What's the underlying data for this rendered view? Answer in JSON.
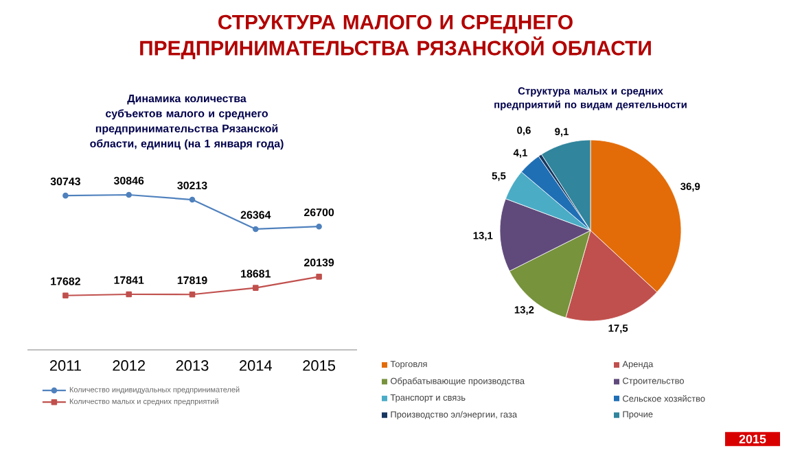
{
  "chart_data": [
    {
      "type": "line",
      "title": "СТРУКТУРА МАЛОГО И СРЕДНЕГО ПРЕДПРИНИМАТЕЛЬСТВА РЯЗАНСКОЙ ОБЛАСТИ",
      "subtitle": "Динамика количества субъектов малого и среднего предпринимательства Рязанской области, единиц (на 1 января года)",
      "categories": [
        "2011",
        "2012",
        "2013",
        "2014",
        "2015"
      ],
      "tick_labels": "x",
      "data_labels": true,
      "legend": "bottom",
      "grid": false,
      "series": [
        {
          "name": "Количество индивидуальных предпринимателей",
          "color": "#4f81bd",
          "marker": "circle",
          "values": [
            30743,
            30846,
            30213,
            26364,
            26700
          ]
        },
        {
          "name": "Количество малых и средних предприятий",
          "color": "#c0504d",
          "marker": "square",
          "values": [
            17682,
            17841,
            17819,
            18681,
            20139
          ]
        }
      ]
    },
    {
      "type": "pie",
      "title": "Структура малых  и средних предприятий по видам деятельности",
      "categories": [
        "Торговля",
        "Аренда",
        "Обрабатывающие производства",
        "Строительство",
        "Транспорт и связь",
        "Сельское хозяйство",
        "Производство эл/энергии,  газа",
        "Прочие"
      ],
      "values": [
        36.9,
        17.5,
        13.2,
        13.1,
        5.5,
        4.1,
        0.6,
        9.1
      ],
      "value_labels": [
        "36,9",
        "17,5",
        "13,2",
        "13,1",
        "5,5",
        "4,1",
        "0,6",
        "9,1"
      ],
      "colors": [
        "#e36c09",
        "#c0504d",
        "#77933c",
        "#604a7b",
        "#4bacc6",
        "#1f6fb5",
        "#17375e",
        "#31859c"
      ],
      "legend": "bottom",
      "annotations": [
        "2015"
      ]
    }
  ]
}
